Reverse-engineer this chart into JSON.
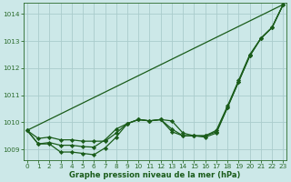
{
  "bg_color": "#cce8e8",
  "grid_color": "#aacccc",
  "line_color": "#1a5c1a",
  "marker_color": "#1a5c1a",
  "ylabel_values": [
    1009,
    1010,
    1011,
    1012,
    1013,
    1014
  ],
  "xlabel_values": [
    0,
    1,
    2,
    3,
    4,
    5,
    6,
    7,
    8,
    9,
    10,
    11,
    12,
    13,
    14,
    15,
    16,
    17,
    18,
    19,
    20,
    21,
    22,
    23
  ],
  "xlabel": "Graphe pression niveau de la mer (hPa)",
  "ylim": [
    1008.6,
    1014.4
  ],
  "xlim": [
    -0.3,
    23.3
  ],
  "tick_color": "#2a6a2a",
  "axis_label_color": "#1a5c1a",
  "line1_x": [
    0,
    1,
    2,
    3,
    4,
    5,
    6,
    7,
    8,
    9,
    10,
    11,
    12,
    13,
    14,
    15,
    16,
    17,
    18,
    19,
    20,
    21,
    22,
    23
  ],
  "line1_y": [
    1009.7,
    1009.2,
    1009.2,
    1008.9,
    1008.9,
    1008.85,
    1008.8,
    1009.05,
    1009.45,
    1009.95,
    1010.1,
    1010.05,
    1010.1,
    1010.05,
    1009.6,
    1009.5,
    1009.45,
    1009.6,
    1010.55,
    1011.5,
    1012.45,
    1013.1,
    1013.5,
    1014.35
  ],
  "line2_x": [
    0,
    1,
    2,
    3,
    4,
    5,
    6,
    7,
    8,
    9,
    10,
    11,
    12,
    13,
    14,
    15,
    16,
    17,
    18,
    19,
    20,
    21,
    22,
    23
  ],
  "line2_y": [
    1009.7,
    1009.2,
    1009.25,
    1009.15,
    1009.15,
    1009.1,
    1009.08,
    1009.35,
    1009.75,
    1009.95,
    1010.1,
    1010.05,
    1010.1,
    1009.65,
    1009.5,
    1009.5,
    1009.5,
    1009.65,
    1010.55,
    1011.5,
    1012.45,
    1013.1,
    1013.5,
    1014.35
  ],
  "line3_x": [
    0,
    1,
    2,
    3,
    4,
    5,
    6,
    7,
    8,
    9,
    10,
    11,
    12,
    13,
    14,
    15,
    16,
    17,
    18,
    19,
    20,
    21,
    22,
    23
  ],
  "line3_y": [
    1009.7,
    1009.4,
    1009.45,
    1009.35,
    1009.35,
    1009.3,
    1009.3,
    1009.3,
    1009.6,
    1009.95,
    1010.1,
    1010.05,
    1010.1,
    1009.75,
    1009.5,
    1009.5,
    1009.5,
    1009.7,
    1010.6,
    1011.55,
    1012.5,
    1013.1,
    1013.5,
    1014.35
  ],
  "line4_x": [
    0,
    23
  ],
  "line4_y": [
    1009.7,
    1014.35
  ],
  "lw_main": 0.9,
  "lw_straight": 0.9,
  "marker_size": 2.2
}
